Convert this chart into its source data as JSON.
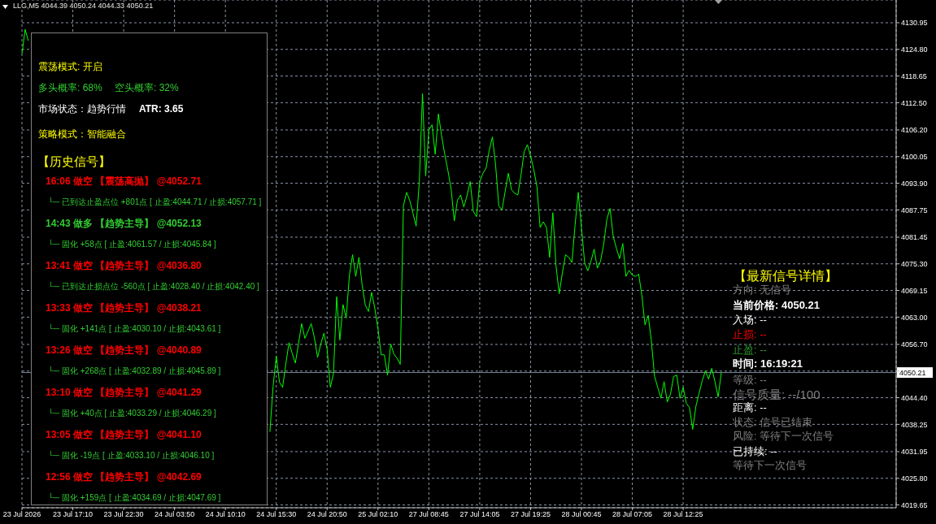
{
  "chart_data": {
    "type": "line",
    "annotations": [
      "LLG,M5 4044.39 4050.24 4044.33 4050.21",
      "震荡模式: 开启",
      "多头概率: 68%",
      "空头概率: 32%",
      "市场状态：趋势行情",
      "ATR: 3.65",
      "策略模式：智能融合",
      "【历史信号】",
      "16:06 做空 【震荡高抛】 @4052.71",
      "└─ 已到达止盈点位 +801点 [ 止盈:4044.71 / 止损:4057.71 ]",
      "14:43 做多 【趋势主导】 @4052.13",
      "└─ 固化 +58点 [ 止盈:4061.57 / 止损:4045.84 ]",
      "13:41 做空 【趋势主导】 @4036.80",
      "└─ 已到达止损点位 -560点 [ 止盈:4028.40 / 止损:4042.40 ]",
      "13:33 做空 【趋势主导】 @4038.21",
      "└─ 固化 +141点 [ 止盈:4030.10 / 止损:4043.61 ]",
      "13:26 做空 【趋势主导】 @4040.89",
      "└─ 固化 +268点 [ 止盈:4032.89 / 止损:4045.89 ]",
      "13:10 做空 【趋势主导】 @4041.29",
      "└─ 固化 +40点 [ 止盈:4033.29 / 止损:4046.29 ]",
      "13:05 做空 【趋势主导】 @4041.10",
      "└─ 固化 -19点 [ 止盈:4033.10 / 止损:4046.10 ]",
      "12:56 做空 【趋势主导】 @4042.69",
      "└─ 固化 +159点 [ 止盈:4034.69 / 止损:4047.69 ]",
      "【最新信号详情】",
      "方向: 无信号",
      "当前价格: 4050.21",
      "入场: --",
      "止损: --",
      "止盈: --",
      "时间: 16:19:21",
      "等级: --",
      "信号质量: --/100",
      "距离: --",
      "状态: 信号已结束",
      "风险: 等待下一次信号",
      "已持续: --",
      "等待下一次信号"
    ],
    "categories": [
      "23 Jul 2026",
      null,
      null,
      null,
      null,
      null,
      null,
      null,
      null,
      null,
      null,
      null,
      null,
      null,
      null,
      null,
      "23 Jul 17:10",
      null,
      null,
      null,
      null,
      null,
      null,
      null,
      null,
      null,
      null,
      null,
      null,
      null,
      null,
      null,
      "23 Jul 22:30",
      null,
      null,
      null,
      null,
      null,
      null,
      null,
      null,
      null,
      null,
      null,
      null,
      null,
      null,
      null,
      "24 Jul 03:50",
      null,
      null,
      null,
      null,
      null,
      null,
      null,
      null,
      null,
      null,
      null,
      null,
      null,
      null,
      null,
      "24 Jul 10:10",
      null,
      null,
      null,
      null,
      null,
      null,
      null,
      null,
      null,
      null,
      null,
      null,
      null,
      null,
      null,
      "24 Jul 15:30",
      null,
      null,
      null,
      null,
      null,
      null,
      null,
      null,
      null,
      null,
      null,
      null,
      null,
      null,
      null,
      "24 Jul 20:50",
      null,
      null,
      null,
      null,
      null,
      null,
      null,
      null,
      null,
      null,
      null,
      null,
      null,
      null,
      null,
      "25 Jul 02:10",
      null,
      null,
      null,
      null,
      null,
      null,
      null,
      null,
      null,
      null,
      null,
      null,
      null,
      null,
      null,
      "27 Jul 08:45",
      null,
      null,
      null,
      null,
      null,
      null,
      null,
      null,
      null,
      null,
      null,
      null,
      null,
      null,
      null,
      "27 Jul 14:05",
      null,
      null,
      null,
      null,
      null,
      null,
      null,
      null,
      null,
      null,
      null,
      null,
      null,
      null,
      null,
      "27 Jul 19:25",
      null,
      null,
      null,
      null,
      null,
      null,
      null,
      null,
      null,
      null,
      null,
      null,
      null,
      null,
      null,
      "28 Jul 00:45",
      null,
      null,
      null,
      null,
      null,
      null,
      null,
      null,
      null,
      null,
      null,
      null,
      null,
      null,
      null,
      "28 Jul 07:05",
      null,
      null,
      null,
      null,
      null,
      null,
      null,
      null,
      null,
      null,
      null,
      null,
      null,
      null,
      null,
      "28 Jul 12:25",
      null,
      null,
      null,
      null,
      null,
      null,
      null,
      null,
      null,
      null,
      null,
      null,
      null,
      null,
      null,
      null,
      null,
      null,
      null,
      null,
      null,
      null,
      null,
      null,
      null,
      null,
      null,
      null,
      null,
      null,
      null,
      null,
      null,
      null,
      null,
      null,
      null,
      null,
      null,
      null,
      null,
      null,
      null,
      null,
      null,
      null,
      null,
      null,
      null,
      null,
      null,
      null,
      null,
      null,
      null,
      null,
      null,
      null,
      null,
      null,
      null,
      null,
      null,
      null,
      null,
      null,
      null
    ],
    "series": [
      {
        "color": "#00ff00",
        "values": [
          4123.8,
          4129.4,
          4126.8,
          null,
          null,
          null,
          null,
          null,
          null,
          null,
          null,
          null,
          null,
          null,
          null,
          null,
          null,
          null,
          null,
          null,
          null,
          null,
          null,
          null,
          null,
          null,
          null,
          null,
          null,
          null,
          null,
          null,
          null,
          null,
          null,
          null,
          null,
          null,
          null,
          null,
          null,
          null,
          null,
          null,
          null,
          null,
          null,
          null,
          null,
          null,
          null,
          null,
          null,
          null,
          null,
          null,
          null,
          null,
          null,
          null,
          null,
          null,
          null,
          null,
          null,
          null,
          null,
          null,
          null,
          null,
          null,
          null,
          null,
          null,
          null,
          null,
          null,
          null,
          4036.5,
          4047.0,
          4054.0,
          4048.0,
          4046.8,
          4052.2,
          4057.1,
          4054.7,
          4052.4,
          4056.9,
          4061.5,
          4058.1,
          4059.8,
          4061.5,
          4058.2,
          4053.7,
          4056.8,
          4059.3,
          4055.6,
          4046.8,
          4050.0,
          4067.7,
          4057.7,
          4065.9,
          4062.8,
          4072.6,
          4077.4,
          4072.4,
          4076.8,
          4070.5,
          4065.8,
          4064.3,
          4068.7,
          4065.0,
          4060.3,
          4054.3,
          4054.3,
          4049.6,
          4056.8,
          4054.5,
          4053.5,
          4052.1,
          4088.7,
          4091.8,
          4089.9,
          4087.0,
          4084.0,
          4094.3,
          4114.6,
          4095.6,
          4106.2,
          4107.4,
          4100.6,
          4109.9,
          4104.9,
          4100.6,
          4096.8,
          4092.6,
          4085.2,
          4090.0,
          4091.2,
          4088.4,
          4091.0,
          4094.3,
          4087.4,
          4086.2,
          4094.2,
          4096.2,
          4097.4,
          4101.5,
          4104.6,
          4098.1,
          4088.7,
          4087.7,
          4092.0,
          4096.2,
          4092.4,
          4091.6,
          4091.2,
          4095.9,
          4101.2,
          4102.8,
          4100.2,
          4097.1,
          4093.1,
          4083.7,
          4085.0,
          4083.7,
          4076.8,
          4087.1,
          4074.9,
          4068.4,
          4073.2,
          4077.4,
          4076.8,
          4075.6,
          4084.3,
          4091.8,
          4083.7,
          4075.6,
          4073.7,
          4075.9,
          4078.7,
          4074.3,
          4075.9,
          4079.8,
          4085.6,
          4088.1,
          4081.6,
          4078.9,
          4076.5,
          4080.0,
          4072.4,
          4073.8,
          4072.7,
          4072.4,
          4072.9,
          4068.1,
          4061.2,
          4063.4,
          4057.5,
          4049.3,
          4046.8,
          4044.3,
          4048.1,
          4043.4,
          4045.2,
          4049.3,
          4049.6,
          4044.3,
          4046.8,
          4043.1,
          4042.1,
          4037.1,
          4042.4,
          4045.4,
          4048.3,
          4050.6,
          4048.7,
          4051.2,
          4048.1,
          4044.6,
          4050.21,
          null,
          null,
          null,
          null,
          null,
          null,
          null,
          null,
          null,
          null,
          null,
          null,
          null,
          null,
          null,
          null,
          null,
          null,
          null,
          null,
          null,
          null,
          null,
          null,
          null,
          null,
          null,
          null,
          null,
          null,
          null,
          null,
          null,
          null,
          null,
          null,
          null,
          null,
          null,
          null,
          null,
          null,
          null,
          null,
          null,
          null,
          null,
          null,
          null,
          null,
          null,
          null,
          null,
          null,
          null
        ]
      }
    ],
    "ylim": [
      4019.0,
      4136.2
    ],
    "yticks": [
      4019.65,
      {
        "value": 4025.8,
        "label": "4025.80"
      },
      4031.95,
      4038.25,
      {
        "value": 4044.4,
        "label": "4044.40"
      },
      {
        "value": 4050.55,
        "label": null
      },
      {
        "value": 4056.7,
        "label": "4056.70"
      },
      {
        "value": 4063,
        "label": "4063.00"
      },
      4069.15,
      {
        "value": 4075.3,
        "label": "4075.30"
      },
      4081.45,
      4087.75,
      {
        "value": 4093.9,
        "label": "4093.90"
      },
      4100.05,
      {
        "value": 4106.2,
        "label": "4106.20"
      },
      {
        "value": 4112.5,
        "label": "4112.50"
      },
      4118.65,
      {
        "value": 4124.8,
        "label": "4124.80"
      },
      4130.95
    ],
    "grid": true,
    "ref_lines": [
      {
        "axis": "y",
        "value": 4050.21,
        "label": "4050.21",
        "color": "#778899"
      }
    ]
  }
}
